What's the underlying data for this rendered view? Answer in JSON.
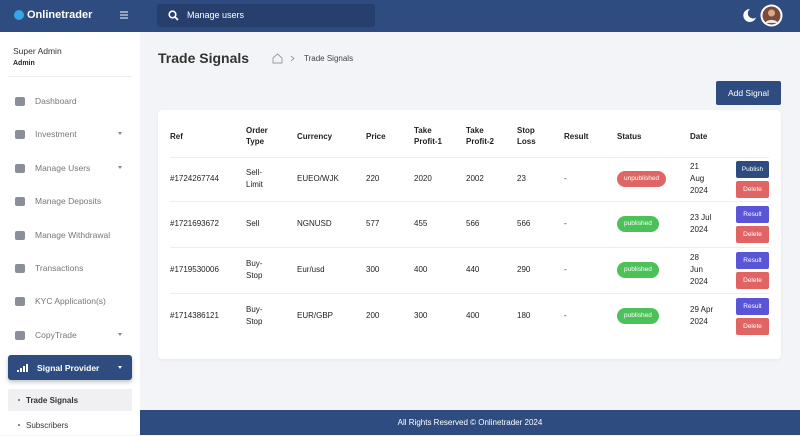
{
  "header": {
    "brand": "Onlinetrader",
    "search_placeholder": "Manage users"
  },
  "sidebar": {
    "user_name": "Super Admin",
    "role": "Admin",
    "nav": [
      {
        "label": "Dashboard"
      },
      {
        "label": "Investment",
        "dropdown": true
      },
      {
        "label": "Manage Users",
        "dropdown": true
      },
      {
        "label": "Manage Deposits"
      },
      {
        "label": "Manage Withdrawal"
      },
      {
        "label": "Transactions"
      },
      {
        "label": "KYC Application(s)"
      },
      {
        "label": "CopyTrade",
        "dropdown": true
      }
    ],
    "active": {
      "label": "Signal Provider",
      "dropdown": true
    },
    "submenu": [
      "Trade Signals",
      "Subscribers"
    ]
  },
  "page": {
    "title": "Trade Signals",
    "breadcrumb": "Trade Signals",
    "add_button": "Add Signal"
  },
  "table": {
    "columns": [
      "Ref",
      "Order Type",
      "Currency",
      "Price",
      "Take Profit-1",
      "Take Profit-2",
      "Stop Loss",
      "Result",
      "Status",
      "Date"
    ],
    "rows": [
      {
        "cells": [
          "#1724267744",
          "Sell-Limit",
          "EUEO/WJK",
          "220",
          "2020",
          "2002",
          "23",
          "-"
        ],
        "status": "unpublished",
        "date": "21 Aug 2024",
        "actions": [
          "Publish",
          "Delete"
        ]
      },
      {
        "cells": [
          "#1721693672",
          "Sell",
          "NGNUSD",
          "577",
          "455",
          "566",
          "566",
          "-"
        ],
        "status": "published",
        "date": "23 Jul 2024",
        "actions": [
          "Result",
          "Delete"
        ]
      },
      {
        "cells": [
          "#1719530006",
          "Buy-Stop",
          "Eur/usd",
          "300",
          "400",
          "440",
          "290",
          "-"
        ],
        "status": "published",
        "date": "28 Jun 2024",
        "actions": [
          "Result",
          "Delete"
        ]
      },
      {
        "cells": [
          "#1714386121",
          "Buy-Stop",
          "EUR/GBP",
          "200",
          "300",
          "400",
          "180",
          "-"
        ],
        "status": "published",
        "date": "29 Apr 2024",
        "actions": [
          "Result",
          "Delete"
        ]
      }
    ]
  },
  "footer": "All Rights Reserved © Onlinetrader 2024"
}
